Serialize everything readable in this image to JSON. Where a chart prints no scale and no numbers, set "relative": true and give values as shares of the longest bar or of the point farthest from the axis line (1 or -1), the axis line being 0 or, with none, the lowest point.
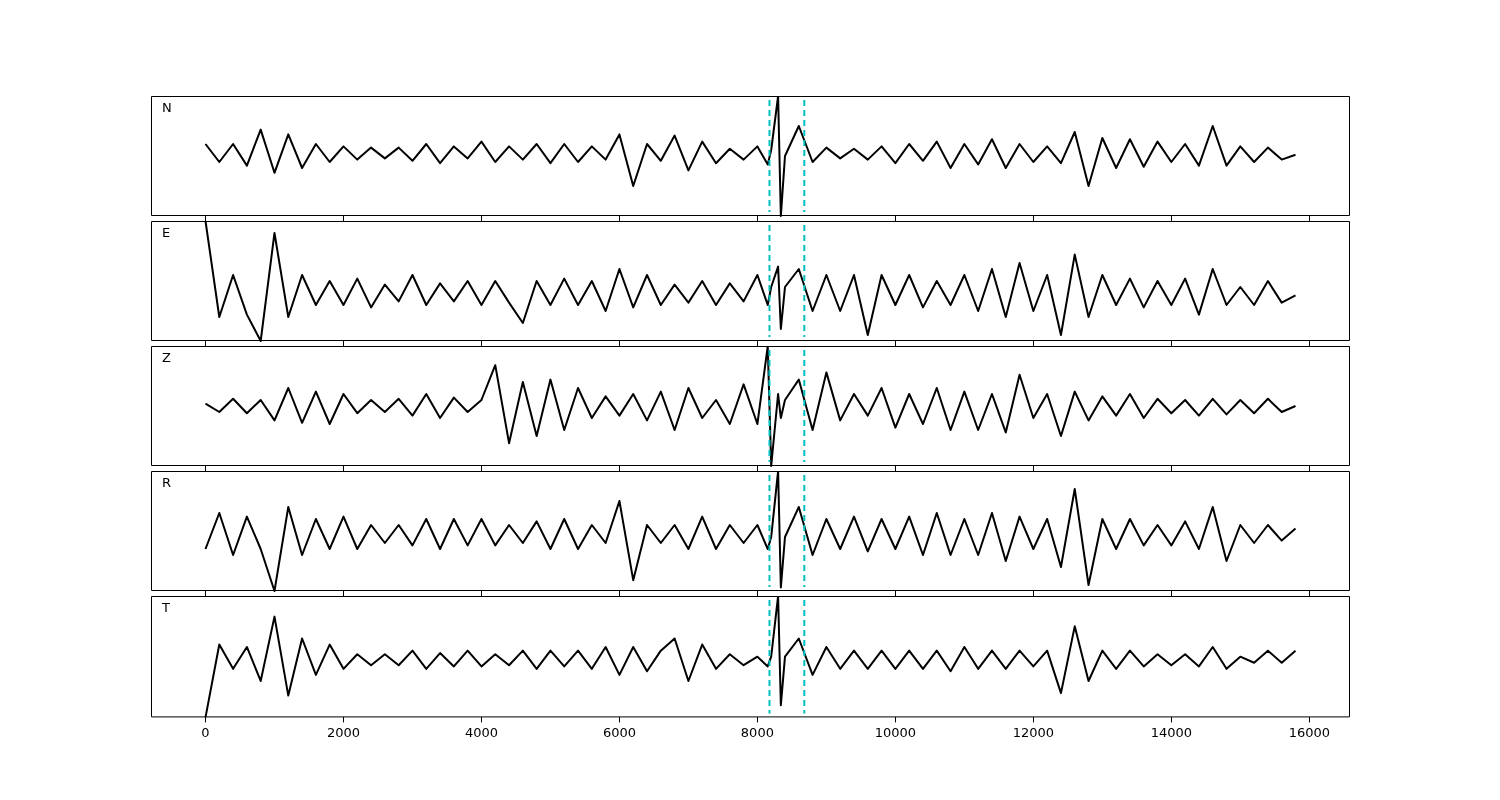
{
  "chart_data": [
    {
      "type": "line",
      "relative": true,
      "annotations": [
        "N"
      ],
      "color": "#000000",
      "tick_labels": false,
      "xlim": [
        -790,
        16590
      ],
      "xticks": [
        0,
        2000,
        4000,
        6000,
        8000,
        10000,
        12000,
        14000,
        16000
      ],
      "line_style": "solid",
      "marker": "none",
      "ref_lines": [
        {
          "axis": "x",
          "value": 8175,
          "color": "#00bfbf",
          "line_style": "dashed"
        },
        {
          "axis": "x",
          "value": 8680,
          "color": "#00bfbf",
          "line_style": "dashed"
        }
      ],
      "x": [
        0,
        200,
        400,
        600,
        800,
        1000,
        1200,
        1400,
        1600,
        1800,
        2000,
        2200,
        2400,
        2600,
        2800,
        3000,
        3200,
        3400,
        3600,
        3800,
        4000,
        4200,
        4400,
        4600,
        4800,
        5000,
        5200,
        5400,
        5600,
        5800,
        6000,
        6200,
        6400,
        6600,
        6800,
        7000,
        7200,
        7400,
        7600,
        7800,
        8000,
        8150,
        8200,
        8300,
        8340,
        8400,
        8600,
        8800,
        9000,
        9200,
        9400,
        9600,
        9800,
        10000,
        10200,
        10400,
        10600,
        10800,
        11000,
        11200,
        11400,
        11600,
        11800,
        12000,
        12200,
        12400,
        12600,
        12800,
        13000,
        13200,
        13400,
        13600,
        13800,
        14000,
        14200,
        14400,
        14600,
        14800,
        15000,
        15200,
        15400,
        15600,
        15800
      ],
      "values": [
        0.6,
        0.45,
        0.6,
        0.42,
        0.72,
        0.36,
        0.68,
        0.4,
        0.6,
        0.45,
        0.58,
        0.47,
        0.57,
        0.48,
        0.57,
        0.46,
        0.6,
        0.44,
        0.58,
        0.48,
        0.62,
        0.45,
        0.58,
        0.47,
        0.6,
        0.44,
        0.6,
        0.45,
        0.58,
        0.47,
        0.68,
        0.25,
        0.6,
        0.46,
        0.67,
        0.38,
        0.62,
        0.44,
        0.56,
        0.47,
        0.58,
        0.43,
        0.55,
        1.0,
        0,
        0.5,
        0.75,
        0.45,
        0.57,
        0.48,
        0.56,
        0.47,
        0.58,
        0.44,
        0.6,
        0.46,
        0.62,
        0.4,
        0.6,
        0.43,
        0.64,
        0.4,
        0.6,
        0.45,
        0.58,
        0.44,
        0.7,
        0.25,
        0.65,
        0.4,
        0.64,
        0.41,
        0.62,
        0.45,
        0.6,
        0.42,
        0.75,
        0.42,
        0.58,
        0.45,
        0.57,
        0.47,
        0.51
      ]
    },
    {
      "type": "line",
      "relative": true,
      "annotations": [
        "E"
      ],
      "color": "#000000",
      "tick_labels": false,
      "xlim": [
        -790,
        16590
      ],
      "xticks": [
        0,
        2000,
        4000,
        6000,
        8000,
        10000,
        12000,
        14000,
        16000
      ],
      "line_style": "solid",
      "marker": "none",
      "ref_lines": [
        {
          "axis": "x",
          "value": 8175,
          "color": "#00bfbf",
          "line_style": "dashed"
        },
        {
          "axis": "x",
          "value": 8680,
          "color": "#00bfbf",
          "line_style": "dashed"
        }
      ],
      "x": [
        0,
        200,
        400,
        600,
        800,
        1000,
        1200,
        1400,
        1600,
        1800,
        2000,
        2200,
        2400,
        2600,
        2800,
        3000,
        3200,
        3400,
        3600,
        3800,
        4000,
        4200,
        4400,
        4600,
        4800,
        5000,
        5200,
        5400,
        5600,
        5800,
        6000,
        6200,
        6400,
        6600,
        6800,
        7000,
        7200,
        7400,
        7600,
        7800,
        8000,
        8150,
        8200,
        8300,
        8340,
        8400,
        8600,
        8800,
        9000,
        9200,
        9400,
        9600,
        9800,
        10000,
        10200,
        10400,
        10600,
        10800,
        11000,
        11200,
        11400,
        11600,
        11800,
        12000,
        12200,
        12400,
        12600,
        12800,
        13000,
        13200,
        13400,
        13600,
        13800,
        14000,
        14200,
        14400,
        14600,
        14800,
        15000,
        15200,
        15400,
        15600,
        15800
      ],
      "values": [
        1.0,
        0.2,
        0.55,
        0.22,
        0.0,
        0.9,
        0.2,
        0.55,
        0.3,
        0.5,
        0.3,
        0.52,
        0.28,
        0.47,
        0.33,
        0.55,
        0.3,
        0.48,
        0.33,
        0.5,
        0.3,
        0.5,
        0.32,
        0.15,
        0.5,
        0.3,
        0.52,
        0.3,
        0.5,
        0.25,
        0.6,
        0.28,
        0.55,
        0.3,
        0.47,
        0.32,
        0.5,
        0.3,
        0.48,
        0.33,
        0.55,
        0.3,
        0.45,
        0.62,
        0.1,
        0.45,
        0.6,
        0.25,
        0.55,
        0.25,
        0.55,
        0.05,
        0.55,
        0.3,
        0.55,
        0.28,
        0.5,
        0.3,
        0.55,
        0.25,
        0.6,
        0.2,
        0.65,
        0.25,
        0.55,
        0.05,
        0.72,
        0.2,
        0.55,
        0.3,
        0.52,
        0.28,
        0.5,
        0.3,
        0.52,
        0.22,
        0.6,
        0.3,
        0.45,
        0.3,
        0.5,
        0.32,
        0.38
      ]
    },
    {
      "type": "line",
      "relative": true,
      "annotations": [
        "Z"
      ],
      "color": "#000000",
      "tick_labels": false,
      "xlim": [
        -790,
        16590
      ],
      "xticks": [
        0,
        2000,
        4000,
        6000,
        8000,
        10000,
        12000,
        14000,
        16000
      ],
      "line_style": "solid",
      "marker": "none",
      "ref_lines": [
        {
          "axis": "x",
          "value": 8175,
          "color": "#00bfbf",
          "line_style": "dashed"
        },
        {
          "axis": "x",
          "value": 8680,
          "color": "#00bfbf",
          "line_style": "dashed"
        }
      ],
      "x": [
        0,
        200,
        400,
        600,
        800,
        1000,
        1200,
        1400,
        1600,
        1800,
        2000,
        2200,
        2400,
        2600,
        2800,
        3000,
        3200,
        3400,
        3600,
        3800,
        4000,
        4200,
        4400,
        4600,
        4800,
        5000,
        5200,
        5400,
        5600,
        5800,
        6000,
        6200,
        6400,
        6600,
        6800,
        7000,
        7200,
        7400,
        7600,
        7800,
        8000,
        8150,
        8200,
        8300,
        8340,
        8400,
        8600,
        8800,
        9000,
        9200,
        9400,
        9600,
        9800,
        10000,
        10200,
        10400,
        10600,
        10800,
        11000,
        11200,
        11400,
        11600,
        11800,
        12000,
        12200,
        12400,
        12600,
        12800,
        13000,
        13200,
        13400,
        13600,
        13800,
        14000,
        14200,
        14400,
        14600,
        14800,
        15000,
        15200,
        15400,
        15600,
        15800
      ],
      "values": [
        0.52,
        0.45,
        0.56,
        0.44,
        0.55,
        0.38,
        0.65,
        0.36,
        0.62,
        0.35,
        0.6,
        0.44,
        0.55,
        0.45,
        0.56,
        0.42,
        0.6,
        0.4,
        0.57,
        0.45,
        0.55,
        0.84,
        0.19,
        0.7,
        0.25,
        0.72,
        0.3,
        0.65,
        0.4,
        0.58,
        0.42,
        0.6,
        0.38,
        0.62,
        0.3,
        0.65,
        0.4,
        0.55,
        0.35,
        0.68,
        0.35,
        1.0,
        0.0,
        0.6,
        0.4,
        0.55,
        0.72,
        0.3,
        0.78,
        0.38,
        0.6,
        0.42,
        0.65,
        0.32,
        0.6,
        0.35,
        0.65,
        0.3,
        0.62,
        0.3,
        0.6,
        0.28,
        0.76,
        0.4,
        0.6,
        0.25,
        0.62,
        0.38,
        0.58,
        0.42,
        0.6,
        0.4,
        0.56,
        0.44,
        0.55,
        0.42,
        0.56,
        0.43,
        0.55,
        0.44,
        0.56,
        0.45,
        0.5
      ]
    },
    {
      "type": "line",
      "relative": true,
      "annotations": [
        "R"
      ],
      "color": "#000000",
      "tick_labels": false,
      "xlim": [
        -790,
        16590
      ],
      "xticks": [
        0,
        2000,
        4000,
        6000,
        8000,
        10000,
        12000,
        14000,
        16000
      ],
      "line_style": "solid",
      "marker": "none",
      "ref_lines": [
        {
          "axis": "x",
          "value": 8175,
          "color": "#00bfbf",
          "line_style": "dashed"
        },
        {
          "axis": "x",
          "value": 8680,
          "color": "#00bfbf",
          "line_style": "dashed"
        }
      ],
      "x": [
        0,
        200,
        400,
        600,
        800,
        1000,
        1200,
        1400,
        1600,
        1800,
        2000,
        2200,
        2400,
        2600,
        2800,
        3000,
        3200,
        3400,
        3600,
        3800,
        4000,
        4200,
        4400,
        4600,
        4800,
        5000,
        5200,
        5400,
        5600,
        5800,
        6000,
        6200,
        6400,
        6600,
        6800,
        7000,
        7200,
        7400,
        7600,
        7800,
        8000,
        8150,
        8200,
        8300,
        8340,
        8400,
        8600,
        8800,
        9000,
        9200,
        9400,
        9600,
        9800,
        10000,
        10200,
        10400,
        10600,
        10800,
        11000,
        11200,
        11400,
        11600,
        11800,
        12000,
        12200,
        12400,
        12600,
        12800,
        13000,
        13200,
        13400,
        13600,
        13800,
        14000,
        14200,
        14400,
        14600,
        14800,
        15000,
        15200,
        15400,
        15600,
        15800
      ],
      "values": [
        0.35,
        0.65,
        0.3,
        0.62,
        0.35,
        0.0,
        0.7,
        0.3,
        0.6,
        0.35,
        0.62,
        0.35,
        0.55,
        0.4,
        0.55,
        0.38,
        0.6,
        0.35,
        0.6,
        0.38,
        0.6,
        0.38,
        0.55,
        0.4,
        0.58,
        0.35,
        0.6,
        0.35,
        0.55,
        0.4,
        0.75,
        0.09,
        0.55,
        0.4,
        0.55,
        0.35,
        0.62,
        0.35,
        0.55,
        0.4,
        0.55,
        0.35,
        0.45,
        1.0,
        0.03,
        0.45,
        0.7,
        0.3,
        0.6,
        0.35,
        0.62,
        0.33,
        0.6,
        0.35,
        0.62,
        0.3,
        0.65,
        0.3,
        0.6,
        0.3,
        0.65,
        0.25,
        0.62,
        0.35,
        0.6,
        0.2,
        0.85,
        0.05,
        0.6,
        0.35,
        0.6,
        0.38,
        0.55,
        0.38,
        0.58,
        0.35,
        0.7,
        0.25,
        0.55,
        0.4,
        0.55,
        0.42,
        0.52
      ]
    },
    {
      "type": "line",
      "relative": true,
      "annotations": [
        "T"
      ],
      "color": "#000000",
      "tick_labels": "x",
      "xlim": [
        -790,
        16590
      ],
      "xticks": [
        0,
        2000,
        4000,
        6000,
        8000,
        10000,
        12000,
        14000,
        16000
      ],
      "line_style": "solid",
      "marker": "none",
      "ref_lines": [
        {
          "axis": "x",
          "value": 8175,
          "color": "#00bfbf",
          "line_style": "dashed"
        },
        {
          "axis": "x",
          "value": 8680,
          "color": "#00bfbf",
          "line_style": "dashed"
        }
      ],
      "x": [
        0,
        200,
        400,
        600,
        800,
        1000,
        1200,
        1400,
        1600,
        1800,
        2000,
        2200,
        2400,
        2600,
        2800,
        3000,
        3200,
        3400,
        3600,
        3800,
        4000,
        4200,
        4400,
        4600,
        4800,
        5000,
        5200,
        5400,
        5600,
        5800,
        6000,
        6200,
        6400,
        6600,
        6800,
        7000,
        7200,
        7400,
        7600,
        7800,
        8000,
        8150,
        8200,
        8300,
        8340,
        8400,
        8600,
        8800,
        9000,
        9200,
        9400,
        9600,
        9800,
        10000,
        10200,
        10400,
        10600,
        10800,
        11000,
        11200,
        11400,
        11600,
        11800,
        12000,
        12200,
        12400,
        12600,
        12800,
        13000,
        13200,
        13400,
        13600,
        13800,
        14000,
        14200,
        14400,
        14600,
        14800,
        15000,
        15200,
        15400,
        15600,
        15800
      ],
      "values": [
        0.0,
        0.6,
        0.4,
        0.58,
        0.3,
        0.83,
        0.18,
        0.65,
        0.35,
        0.6,
        0.4,
        0.52,
        0.43,
        0.52,
        0.43,
        0.55,
        0.4,
        0.53,
        0.42,
        0.55,
        0.42,
        0.52,
        0.43,
        0.55,
        0.4,
        0.55,
        0.42,
        0.55,
        0.4,
        0.58,
        0.35,
        0.58,
        0.38,
        0.55,
        0.65,
        0.3,
        0.6,
        0.4,
        0.52,
        0.43,
        0.5,
        0.42,
        0.5,
        1.0,
        0.1,
        0.5,
        0.65,
        0.35,
        0.58,
        0.4,
        0.55,
        0.4,
        0.55,
        0.4,
        0.55,
        0.4,
        0.55,
        0.38,
        0.58,
        0.4,
        0.55,
        0.4,
        0.55,
        0.42,
        0.55,
        0.2,
        0.75,
        0.3,
        0.55,
        0.4,
        0.55,
        0.42,
        0.52,
        0.43,
        0.52,
        0.42,
        0.58,
        0.4,
        0.5,
        0.45,
        0.55,
        0.45,
        0.55
      ]
    }
  ]
}
